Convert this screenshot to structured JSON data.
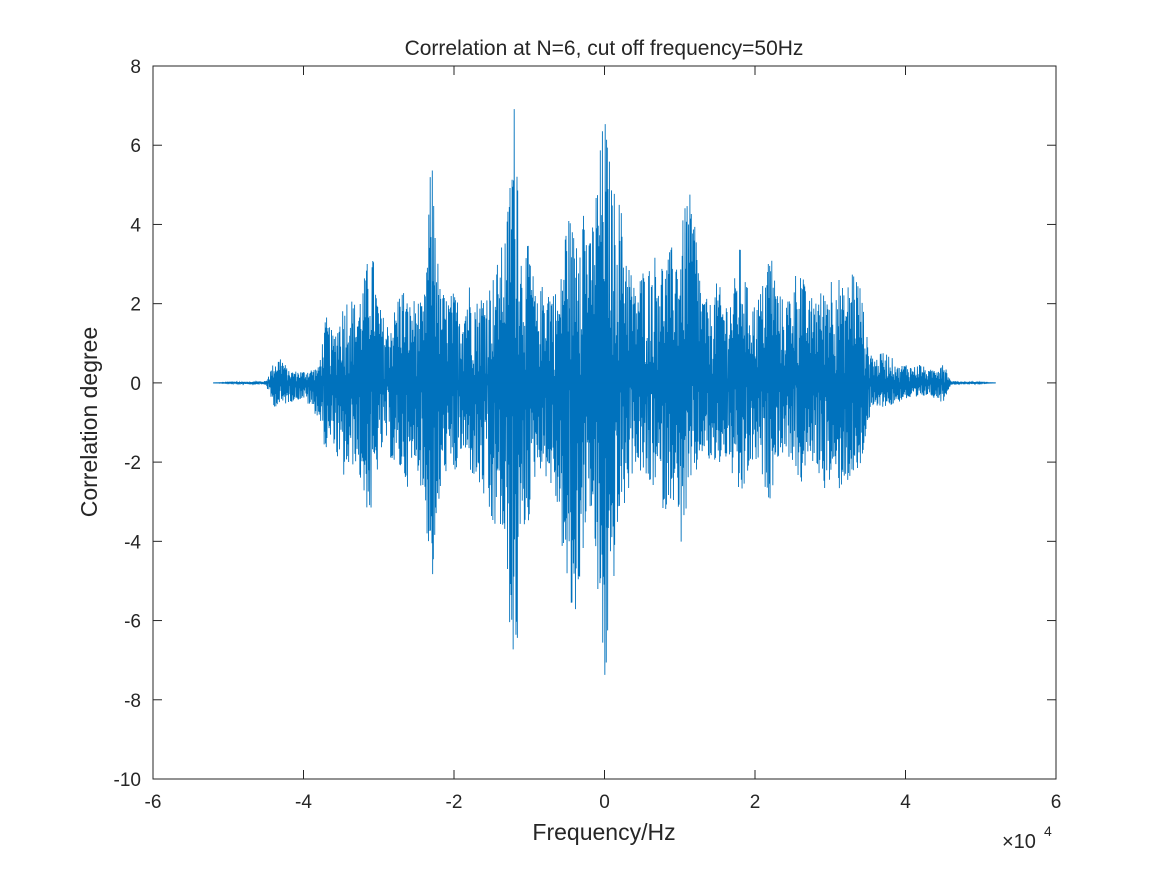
{
  "chart_data": {
    "type": "line",
    "title": "Correlation at N=6, cut off frequency=50Hz",
    "xlabel": "Frequency/Hz",
    "ylabel": "Correlation degree",
    "xlim": [
      -60000,
      60000
    ],
    "ylim": [
      -10,
      8
    ],
    "x_tick_labels": [
      "-6",
      "-4",
      "-2",
      "0",
      "2",
      "4",
      "6"
    ],
    "x_ticks": [
      -60000,
      -40000,
      -20000,
      0,
      20000,
      40000,
      60000
    ],
    "x_exponent_base": "×10",
    "x_exponent_power": "4",
    "y_tick_labels": [
      "8",
      "6",
      "4",
      "2",
      "0",
      "-2",
      "-4",
      "-6",
      "-8",
      "-10"
    ],
    "y_ticks": [
      8,
      6,
      4,
      2,
      0,
      -2,
      -4,
      -6,
      -8,
      -10
    ],
    "grid": false,
    "box": true,
    "series": [
      {
        "color": "#0072BD",
        "x_range": [
          -52000,
          52000
        ],
        "envelope_x": [
          -52000,
          -45000,
          -44000,
          -43000,
          -42000,
          -40000,
          -38000,
          -37000,
          -36000,
          -35000,
          -34000,
          -33000,
          -32000,
          -31000,
          -30000,
          -29000,
          -28000,
          -27000,
          -26000,
          -25000,
          -24000,
          -23000,
          -22500,
          -22000,
          -21000,
          -20000,
          -19000,
          -18000,
          -17000,
          -16000,
          -15000,
          -14000,
          -13000,
          -12000,
          -11500,
          -11000,
          -10000,
          -9000,
          -8000,
          -7000,
          -6000,
          -5000,
          -4000,
          -3000,
          -2000,
          -1000,
          0,
          1000,
          2000,
          3000,
          4000,
          5000,
          6000,
          7000,
          8000,
          9000,
          10000,
          11000,
          12000,
          13000,
          14000,
          15000,
          16000,
          17000,
          18000,
          19000,
          20000,
          21000,
          22000,
          23000,
          24000,
          25000,
          26000,
          27000,
          28000,
          29000,
          30000,
          31000,
          32000,
          33000,
          34000,
          35000,
          36000,
          37000,
          38000,
          39000,
          40000,
          41000,
          42000,
          43000,
          44000,
          45000,
          46000,
          52000
        ],
        "envelope_upper": [
          0.0,
          0.05,
          0.5,
          0.7,
          0.3,
          0.3,
          0.4,
          1.7,
          1.2,
          1.9,
          2.3,
          2.0,
          2.6,
          3.6,
          2.0,
          1.5,
          1.8,
          2.6,
          2.0,
          2.2,
          1.9,
          5.9,
          4.8,
          2.5,
          2.2,
          2.3,
          2.0,
          2.6,
          2.1,
          2.4,
          2.6,
          3.2,
          4.0,
          7.2,
          6.3,
          3.0,
          3.6,
          2.0,
          2.7,
          2.5,
          2.2,
          4.5,
          3.8,
          5.4,
          3.5,
          5.2,
          7.0,
          5.0,
          4.7,
          3.5,
          2.4,
          2.9,
          3.0,
          3.4,
          3.0,
          3.5,
          3.5,
          5.0,
          4.3,
          2.3,
          2.0,
          2.6,
          2.1,
          2.3,
          3.5,
          2.4,
          2.0,
          2.5,
          3.6,
          2.4,
          2.0,
          2.6,
          3.2,
          2.0,
          2.4,
          2.3,
          2.8,
          2.8,
          2.2,
          3.1,
          2.5,
          1.0,
          0.6,
          0.8,
          0.7,
          0.4,
          0.5,
          0.4,
          0.5,
          0.3,
          0.4,
          0.6,
          0.05,
          0.0
        ],
        "envelope_lower": [
          0.0,
          -0.05,
          -0.6,
          -0.6,
          -0.5,
          -0.4,
          -0.9,
          -1.8,
          -1.5,
          -2.5,
          -2.3,
          -2.0,
          -3.0,
          -3.5,
          -2.0,
          -1.5,
          -2.2,
          -2.3,
          -2.7,
          -2.0,
          -3.1,
          -5.0,
          -5.2,
          -3.2,
          -2.2,
          -2.5,
          -1.8,
          -2.2,
          -2.6,
          -3.0,
          -4.0,
          -3.5,
          -5.0,
          -8.0,
          -6.5,
          -4.0,
          -3.5,
          -2.1,
          -2.3,
          -2.7,
          -3.5,
          -5.5,
          -6.5,
          -4.5,
          -3.0,
          -5.3,
          -8.1,
          -5.5,
          -3.5,
          -3.0,
          -2.0,
          -2.4,
          -2.8,
          -2.5,
          -3.4,
          -2.8,
          -4.3,
          -3.2,
          -2.5,
          -1.8,
          -2.1,
          -2.2,
          -1.9,
          -2.4,
          -3.2,
          -2.4,
          -2.0,
          -2.5,
          -3.0,
          -1.9,
          -1.8,
          -2.0,
          -2.7,
          -2.1,
          -2.0,
          -2.7,
          -2.6,
          -2.8,
          -2.5,
          -2.6,
          -2.3,
          -1.0,
          -0.7,
          -0.6,
          -0.6,
          -0.5,
          -0.4,
          -0.5,
          -0.4,
          -0.3,
          -0.4,
          -0.5,
          -0.05,
          0.0
        ]
      }
    ]
  }
}
